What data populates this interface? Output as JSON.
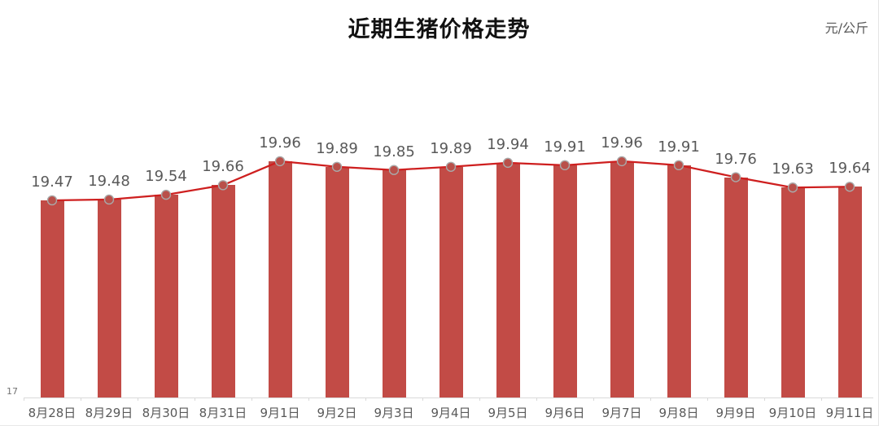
{
  "header": {
    "title": "近期生猪价格走势",
    "unit": "元/公斤"
  },
  "y_axis": {
    "visible_tick": "17"
  },
  "chart_data": {
    "type": "bar",
    "subtype": "bar-with-line-overlay",
    "title": "近期生猪价格走势",
    "unit_label": "元/公斤",
    "categories": [
      "8月28日",
      "8月29日",
      "8月30日",
      "8月31日",
      "9月1日",
      "9月2日",
      "9月3日",
      "9月4日",
      "9月5日",
      "9月6日",
      "9月7日",
      "9月8日",
      "9月9日",
      "9月10日",
      "9月11日"
    ],
    "values": [
      19.47,
      19.48,
      19.54,
      19.66,
      19.96,
      19.89,
      19.85,
      19.89,
      19.94,
      19.91,
      19.96,
      19.91,
      19.76,
      19.63,
      19.64
    ],
    "data_labels": [
      "19.47",
      "19.48",
      "19.54",
      "19.66",
      "19.96",
      "19.89",
      "19.85",
      "19.89",
      "19.94",
      "19.91",
      "19.96",
      "19.91",
      "19.76",
      "19.63",
      "19.64"
    ],
    "xlabel": "",
    "ylabel": "",
    "ylim": [
      17,
      21
    ],
    "y_ticks_visible": [
      "17"
    ],
    "grid": false,
    "legend": "none",
    "colors": {
      "bar_fill": "#c24b46",
      "line_stroke": "#ce1f1f",
      "marker_fill": "#b9504a",
      "marker_stroke": "#a9a9a9",
      "label_text": "#595959",
      "axis": "#d9d9d9",
      "title_text": "#111111"
    }
  }
}
